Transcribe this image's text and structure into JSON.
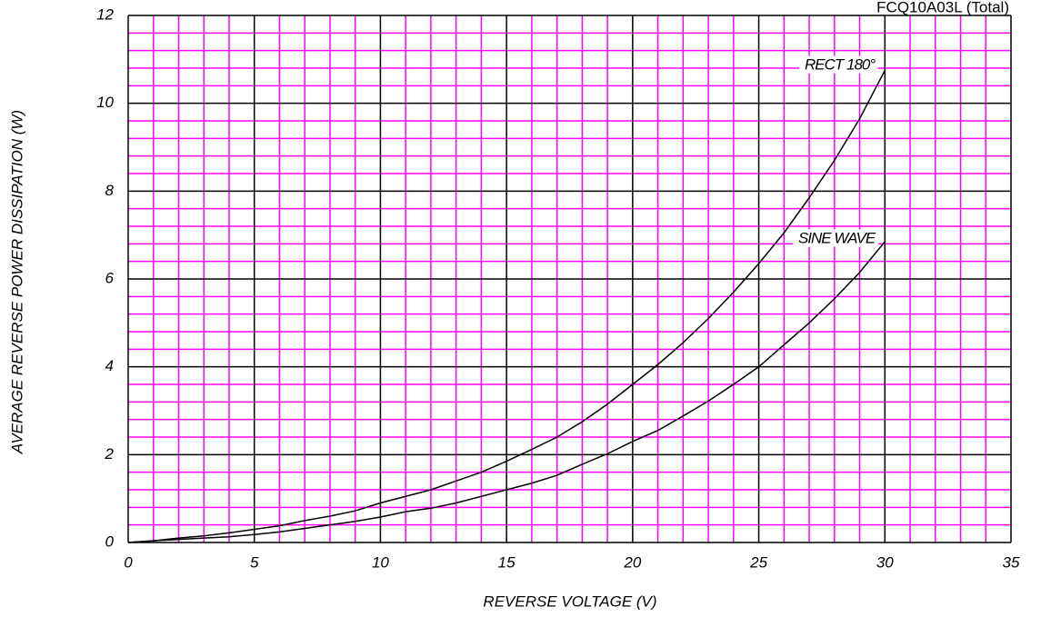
{
  "chart_data": {
    "type": "line",
    "title": "FCQ10A03L (Total)",
    "x_label": "REVERSE VOLTAGE (V)",
    "y_label": "AVERAGE REVERSE POWER DISSIPATION (W)",
    "xlim": [
      0,
      35
    ],
    "xticks": [
      0,
      5,
      10,
      15,
      20,
      25,
      30,
      35
    ],
    "ylim": [
      0,
      12
    ],
    "yticks": [
      0,
      2,
      4,
      6,
      8,
      10,
      12
    ],
    "grid": true,
    "grid_color": "#000000",
    "minor_grid_color": "#ff00ff",
    "x": [
      0,
      1,
      2,
      3,
      4,
      5,
      6,
      7,
      8,
      9,
      10,
      11,
      12,
      13,
      14,
      15,
      16,
      17,
      18,
      19,
      20,
      21,
      22,
      23,
      24,
      25,
      26,
      27,
      28,
      29,
      30
    ],
    "series": [
      {
        "name": "RECT 180°",
        "color": "#000000",
        "values": [
          0,
          0.04,
          0.1,
          0.15,
          0.22,
          0.3,
          0.38,
          0.5,
          0.6,
          0.72,
          0.9,
          1.05,
          1.2,
          1.4,
          1.6,
          1.85,
          2.12,
          2.4,
          2.75,
          3.15,
          3.6,
          4.05,
          4.55,
          5.1,
          5.7,
          6.35,
          7.05,
          7.85,
          8.7,
          9.65,
          10.75
        ]
      },
      {
        "name": "SINE WAVE",
        "color": "#000000",
        "values": [
          0,
          0.04,
          0.07,
          0.1,
          0.13,
          0.18,
          0.24,
          0.32,
          0.4,
          0.48,
          0.58,
          0.7,
          0.78,
          0.9,
          1.05,
          1.2,
          1.35,
          1.53,
          1.78,
          2.02,
          2.3,
          2.55,
          2.88,
          3.22,
          3.6,
          4.0,
          4.5,
          5.0,
          5.55,
          6.15,
          6.85
        ]
      }
    ],
    "annotations": [
      {
        "text": "RECT 180°",
        "x": 29.6,
        "y": 10.86
      },
      {
        "text": "SINE WAVE",
        "x": 29.6,
        "y": 6.91
      }
    ]
  }
}
